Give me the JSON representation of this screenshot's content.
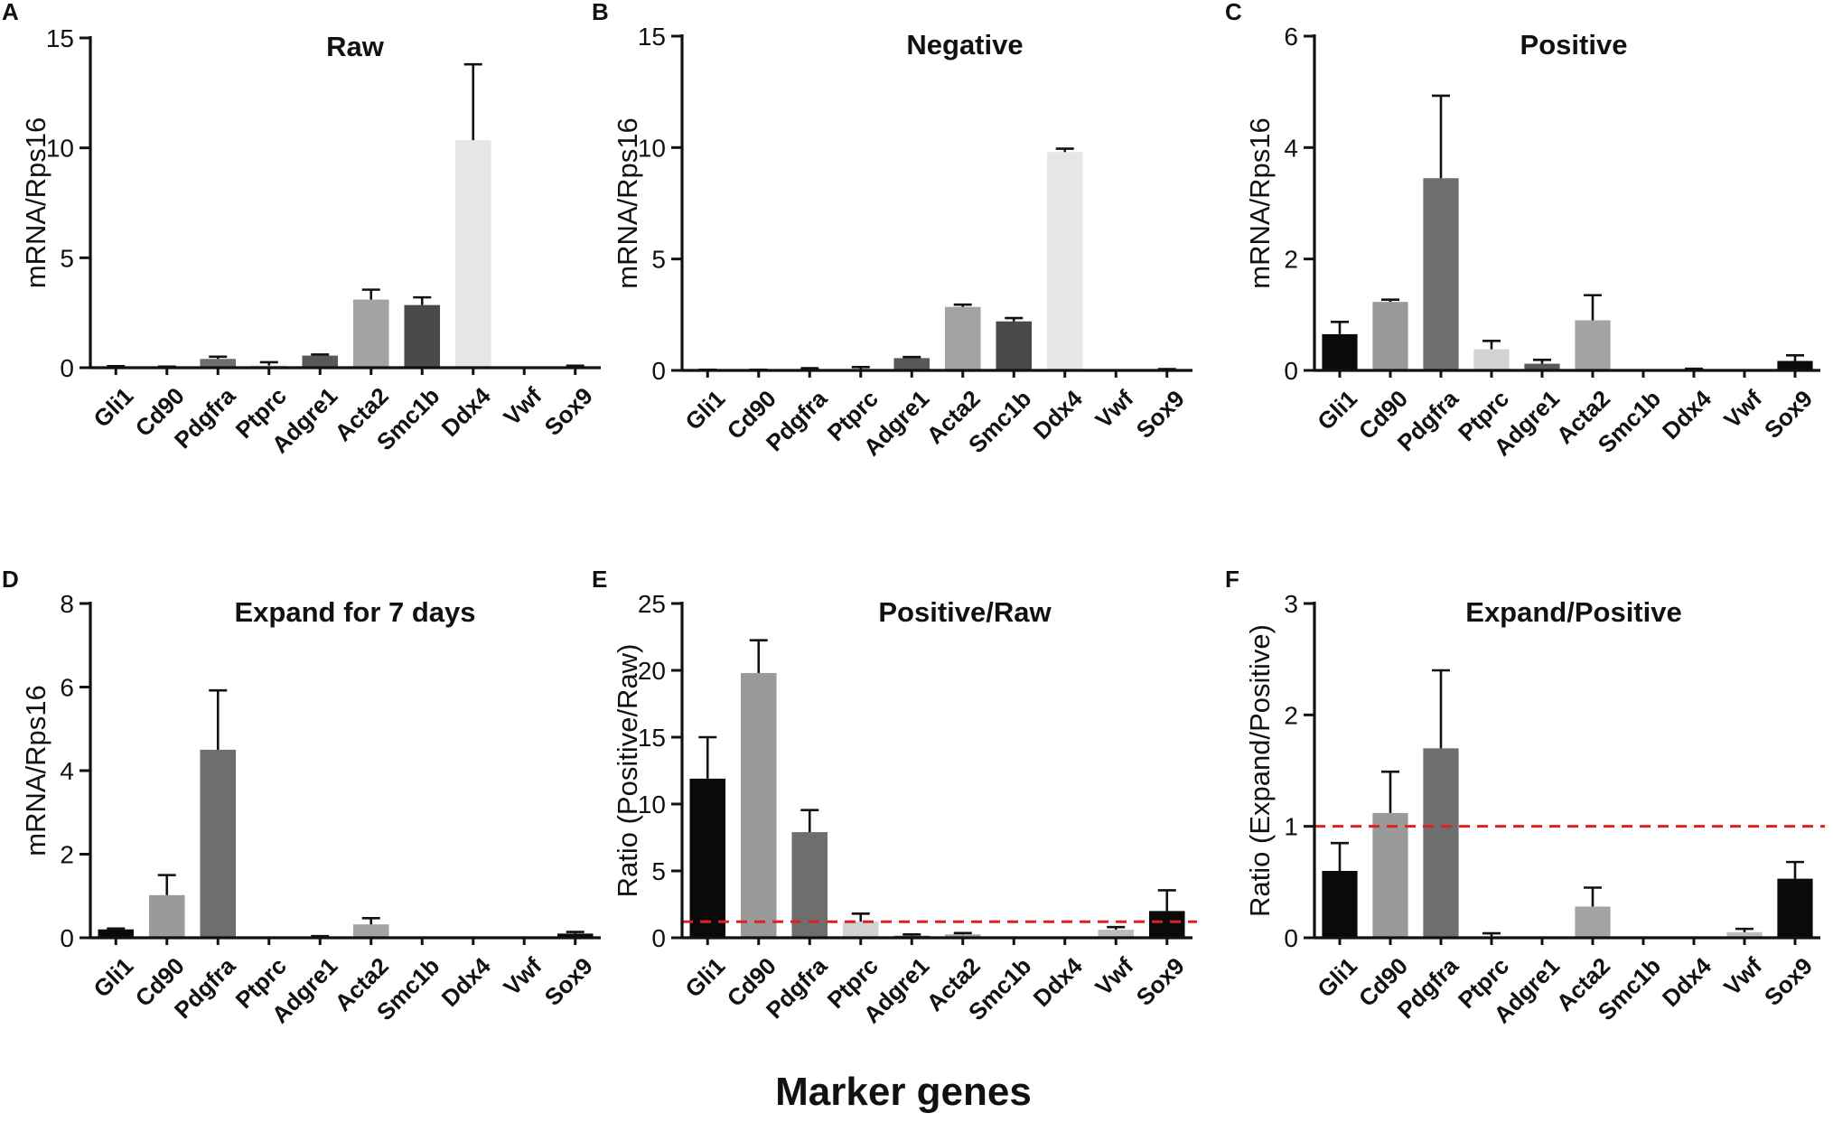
{
  "xlabel": "Marker genes",
  "colors": {
    "Gli1": "#0a0a0a",
    "Cd90": "#9a9a9a",
    "Pdgfra": "#6e6e6e",
    "Ptprc": "#d2d2d2",
    "Adgre1": "#585858",
    "Acta2": "#a3a3a3",
    "Smc1b": "#4a4a4a",
    "Ddx4": "#e6e6e6",
    "Vwf": "#bdbdbd",
    "Sox9": "#0a0a0a",
    "reference_line": "#e02020"
  },
  "chart_data": [
    {
      "panel": "A",
      "type": "bar",
      "title": "Raw",
      "ylabel": "mRNA/Rps16",
      "ylim": [
        0,
        15
      ],
      "yticks": [
        0,
        5,
        10,
        15
      ],
      "ytick_labels": [
        "0",
        "5",
        "10",
        "15"
      ],
      "categories": [
        "Gli1",
        "Cd90",
        "Pdgfra",
        "Ptprc",
        "Adgre1",
        "Acta2",
        "Smc1b",
        "Ddx4",
        "Vwf",
        "Sox9"
      ],
      "values": [
        0.02,
        0.01,
        0.4,
        0.1,
        0.55,
        3.1,
        2.85,
        10.35,
        0.01,
        0.04
      ],
      "errors": [
        0.05,
        0.04,
        0.1,
        0.15,
        0.05,
        0.45,
        0.35,
        3.45,
        0.0,
        0.05
      ],
      "reference_line": null
    },
    {
      "panel": "B",
      "type": "bar",
      "title": "Negative",
      "ylabel": "mRNA/Rps16",
      "ylim": [
        0,
        15
      ],
      "yticks": [
        0,
        5,
        10,
        15
      ],
      "ytick_labels": [
        "0",
        "5",
        "10",
        "15"
      ],
      "categories": [
        "Gli1",
        "Cd90",
        "Pdgfra",
        "Ptprc",
        "Adgre1",
        "Acta2",
        "Smc1b",
        "Ddx4",
        "Vwf",
        "Sox9"
      ],
      "values": [
        0.01,
        0.01,
        0.05,
        0.05,
        0.55,
        2.85,
        2.2,
        9.8,
        0.01,
        0.03
      ],
      "errors": [
        0.02,
        0.02,
        0.05,
        0.1,
        0.05,
        0.1,
        0.15,
        0.15,
        0.0,
        0.03
      ],
      "reference_line": null
    },
    {
      "panel": "C",
      "type": "bar",
      "title": "Positive",
      "ylabel": "mRNA/Rps16",
      "ylim": [
        0,
        6
      ],
      "yticks": [
        0,
        2,
        4,
        6
      ],
      "ytick_labels": [
        "0",
        "2",
        "4",
        "6"
      ],
      "categories": [
        "Gli1",
        "Cd90",
        "Pdgfra",
        "Ptprc",
        "Adgre1",
        "Acta2",
        "Smc1b",
        "Ddx4",
        "Vwf",
        "Sox9"
      ],
      "values": [
        0.65,
        1.23,
        3.45,
        0.38,
        0.12,
        0.9,
        0.01,
        0.01,
        0.01,
        0.17
      ],
      "errors": [
        0.22,
        0.04,
        1.48,
        0.15,
        0.07,
        0.45,
        0.0,
        0.02,
        0.0,
        0.1
      ],
      "reference_line": null
    },
    {
      "panel": "D",
      "type": "bar",
      "title": "Expand for 7 days",
      "ylabel": "mRNA/Rps16",
      "ylim": [
        0,
        8
      ],
      "yticks": [
        0,
        2,
        4,
        6,
        8
      ],
      "ytick_labels": [
        "0",
        "2",
        "4",
        "6",
        "8"
      ],
      "categories": [
        "Gli1",
        "Cd90",
        "Pdgfra",
        "Ptprc",
        "Adgre1",
        "Acta2",
        "Smc1b",
        "Ddx4",
        "Vwf",
        "Sox9"
      ],
      "values": [
        0.2,
        1.02,
        4.5,
        0.01,
        0.02,
        0.32,
        0.01,
        0.01,
        0.01,
        0.1
      ],
      "errors": [
        0.02,
        0.48,
        1.42,
        0.0,
        0.02,
        0.15,
        0.0,
        0.0,
        0.0,
        0.04
      ],
      "reference_line": null
    },
    {
      "panel": "E",
      "type": "bar",
      "title": "Positive/Raw",
      "ylabel": "Ratio (Positive/Raw)",
      "ylim": [
        0,
        25
      ],
      "yticks": [
        0,
        5,
        10,
        15,
        20,
        25
      ],
      "ytick_labels": [
        "0",
        "5",
        "10",
        "15",
        "20",
        "25"
      ],
      "categories": [
        "Gli1",
        "Cd90",
        "Pdgfra",
        "Ptprc",
        "Adgre1",
        "Acta2",
        "Smc1b",
        "Ddx4",
        "Vwf",
        "Sox9"
      ],
      "values": [
        11.9,
        19.8,
        7.9,
        1.2,
        0.15,
        0.25,
        0.01,
        0.01,
        0.6,
        2.0
      ],
      "errors": [
        3.1,
        2.45,
        1.65,
        0.6,
        0.1,
        0.1,
        0.0,
        0.0,
        0.2,
        1.55
      ],
      "reference_line": 1.2
    },
    {
      "panel": "F",
      "type": "bar",
      "title": "Expand/Positive",
      "ylabel": "Ratio (Expand/Positive)",
      "ylim": [
        0,
        3
      ],
      "yticks": [
        0,
        1,
        2,
        3
      ],
      "ytick_labels": [
        "0",
        "1",
        "2",
        "3"
      ],
      "categories": [
        "Gli1",
        "Cd90",
        "Pdgfra",
        "Ptprc",
        "Adgre1",
        "Acta2",
        "Smc1b",
        "Ddx4",
        "Vwf",
        "Sox9"
      ],
      "values": [
        0.6,
        1.12,
        1.7,
        0.01,
        0.01,
        0.28,
        0.01,
        0.01,
        0.05,
        0.53
      ],
      "errors": [
        0.25,
        0.37,
        0.7,
        0.03,
        0.0,
        0.17,
        0.0,
        0.0,
        0.03,
        0.15
      ],
      "reference_line": 1.0
    }
  ]
}
